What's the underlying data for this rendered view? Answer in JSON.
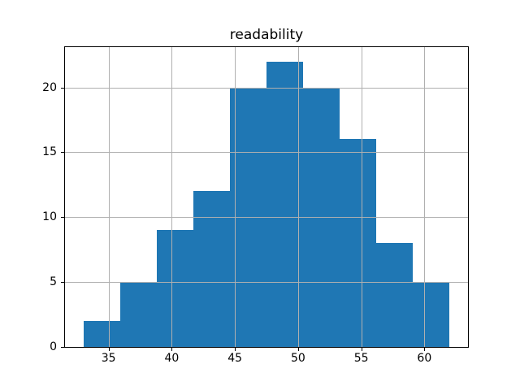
{
  "figure": {
    "background": "#ffffff"
  },
  "chart_data": {
    "type": "bar",
    "subtype": "histogram",
    "title": "readability",
    "xlabel": "",
    "ylabel": "",
    "bin_edges": [
      33.0,
      35.9,
      38.8,
      41.7,
      44.6,
      47.5,
      50.4,
      53.3,
      56.2,
      59.1,
      62.0
    ],
    "counts": [
      2,
      5,
      9,
      12,
      20,
      22,
      20,
      16,
      8,
      5
    ],
    "xticks": [
      35,
      40,
      45,
      50,
      55,
      60
    ],
    "yticks": [
      0,
      5,
      10,
      15,
      20
    ],
    "xlim": [
      31.55,
      63.45
    ],
    "ylim": [
      0,
      23.1
    ],
    "grid": true,
    "legend": "none",
    "bar_color": "#1f77b4",
    "grid_color": "#b0b0b0",
    "axis_color": "#000000",
    "text_color": "#000000",
    "background_color": "#ffffff"
  }
}
